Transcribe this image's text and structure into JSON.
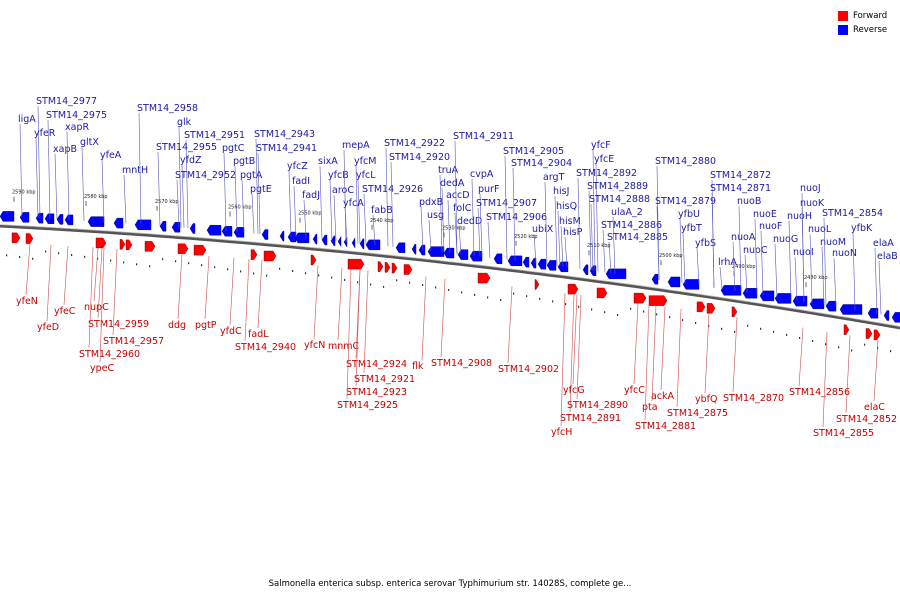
{
  "legend": {
    "forward_label": "Forward",
    "reverse_label": "Reverse",
    "forward_color": "#ff0000",
    "reverse_color": "#0000ff"
  },
  "caption": "Salmonella enterica subsp. enterica serovar Typhimurium str. 14028S, complete ge...",
  "ticks": [
    "2590 kbp",
    "2580 kbp",
    "2570 kbp",
    "2560 kbp",
    "2550 kbp",
    "2540 kbp",
    "2530 kbp",
    "2520 kbp",
    "2510 kbp",
    "2500 kbp",
    "2490 kbp",
    "2480 kbp"
  ],
  "reverse_genes": [
    "ligA",
    "STM14_2977",
    "yfeR",
    "STM14_2975",
    "xapR",
    "xapB",
    "gltX",
    "yfeA",
    "mntH",
    "STM14_2958",
    "glk",
    "STM14_2951",
    "STM14_2955",
    "pgtC",
    "yfdZ",
    "pgtB",
    "STM14_2952",
    "pgtA",
    "pgtE",
    "STM14_2943",
    "STM14_2941",
    "yfcZ",
    "fadI",
    "fadJ",
    "sixA",
    "yfcB",
    "aroC",
    "mepA",
    "yfcM",
    "yfcL",
    "yfcA",
    "STM14_2926",
    "fabB",
    "STM14_2922",
    "STM14_2920",
    "truA",
    "dedA",
    "pdxB",
    "usg",
    "accD",
    "folC",
    "dedD",
    "STM14_2911",
    "cvpA",
    "purF",
    "STM14_2907",
    "STM14_2906",
    "ubiX",
    "STM14_2905",
    "STM14_2904",
    "argT",
    "hisJ",
    "hisQ",
    "hisM",
    "hisP",
    "yfcF",
    "yfcE",
    "STM14_2892",
    "STM14_2889",
    "STM14_2888",
    "ulaA_2",
    "STM14_2886",
    "STM14_2885",
    "STM14_2880",
    "STM14_2879",
    "yfbU",
    "yfbT",
    "yfbS",
    "lrhA",
    "STM14_2872",
    "STM14_2871",
    "nuoB",
    "nuoA",
    "nuoC",
    "nuoE",
    "nuoF",
    "nuoG",
    "nuoH",
    "nuoI",
    "nuoJ",
    "nuoK",
    "nuoL",
    "nuoM",
    "nuoN",
    "STM14_2854",
    "yfbK",
    "elaA",
    "elaB"
  ],
  "forward_genes": [
    "yfeN",
    "yfeD",
    "yfeC",
    "nupC",
    "STM14_2959",
    "STM14_2957",
    "STM14_2960",
    "ypeC",
    "ddg",
    "pgtP",
    "yfdC",
    "fadL",
    "STM14_2940",
    "yfcN",
    "mnmC",
    "STM14_2924",
    "STM14_2921",
    "STM14_2923",
    "STM14_2925",
    "flk",
    "STM14_2908",
    "STM14_2902",
    "yfcG",
    "STM14_2890",
    "STM14_2891",
    "yfcH",
    "yfcC",
    "pta",
    "ackA",
    "STM14_2881",
    "STM14_2875",
    "ybfQ",
    "STM14_2870",
    "STM14_2856",
    "elaC",
    "STM14_2852",
    "STM14_2855"
  ]
}
